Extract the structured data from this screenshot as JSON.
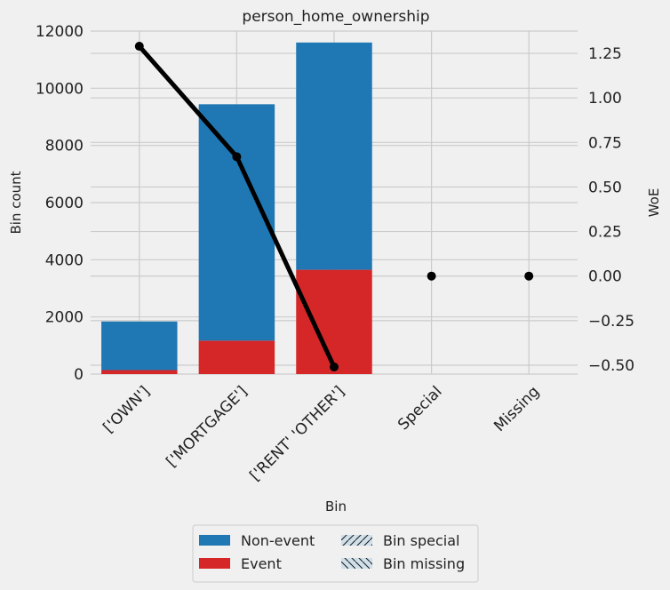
{
  "chart_data": {
    "type": "bar",
    "title": "person_home_ownership",
    "xlabel": "Bin",
    "ylabel": "Bin count",
    "y2label": "WoE",
    "categories": [
      "['OWN']",
      "['MORTGAGE']",
      "['RENT' 'OTHER']",
      "Special",
      "Missing"
    ],
    "series": [
      {
        "name": "Event",
        "values": [
          140,
          1170,
          3650,
          0,
          0
        ],
        "color": "#d62728"
      },
      {
        "name": "Non-event",
        "values": [
          1700,
          8270,
          7950,
          0,
          0
        ],
        "color": "#1f77b4"
      }
    ],
    "woe": {
      "values": [
        1.29,
        0.67,
        -0.51,
        0,
        0
      ],
      "color": "#000000"
    },
    "ylim": [
      0,
      12000
    ],
    "y_ticks": [
      "0",
      "2000",
      "4000",
      "6000",
      "8000",
      "10000",
      "12000"
    ],
    "y2lim": [
      -0.55,
      1.375
    ],
    "y2_ticks": [
      "−0.50",
      "−0.25",
      "0.00",
      "0.25",
      "0.50",
      "0.75",
      "1.00",
      "1.25"
    ],
    "grid": true,
    "legend": {
      "placement": "bottom-center",
      "items": [
        {
          "label": "Non-event",
          "kind": "solid",
          "color": "#1f77b4"
        },
        {
          "label": "Bin special",
          "kind": "hatch-slash",
          "color": "#cfe0ea"
        },
        {
          "label": "Event",
          "kind": "solid",
          "color": "#d62728"
        },
        {
          "label": "Bin missing",
          "kind": "hatch-backslash",
          "color": "#cfe0ea"
        }
      ]
    }
  }
}
